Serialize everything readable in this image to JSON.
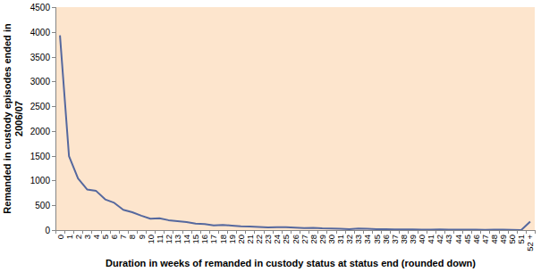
{
  "chart_data": {
    "type": "line",
    "xlabel": "Duration in weeks of remanded in custody status at status end (rounded down)",
    "ylabel": "Remanded in custody episodes ended in 2006/07",
    "categories": [
      "0",
      "1",
      "2",
      "3",
      "4",
      "5",
      "6",
      "7",
      "8",
      "9",
      "10",
      "11",
      "12",
      "13",
      "14",
      "15",
      "16",
      "17",
      "18",
      "19",
      "20",
      "21",
      "22",
      "23",
      "24",
      "25",
      "26",
      "27",
      "28",
      "29",
      "30",
      "31",
      "32",
      "33",
      "34",
      "35",
      "36",
      "37",
      "38",
      "39",
      "40",
      "41",
      "42",
      "43",
      "44",
      "45",
      "46",
      "47",
      "48",
      "49",
      "50",
      "51",
      "52 +"
    ],
    "values": [
      3930,
      1490,
      1040,
      820,
      790,
      620,
      550,
      410,
      360,
      290,
      230,
      240,
      200,
      180,
      160,
      130,
      120,
      95,
      105,
      90,
      75,
      70,
      65,
      55,
      60,
      60,
      50,
      40,
      45,
      35,
      30,
      25,
      20,
      30,
      25,
      20,
      18,
      15,
      12,
      12,
      10,
      10,
      12,
      8,
      10,
      8,
      8,
      6,
      10,
      8,
      5,
      0,
      170
    ],
    "color": "#55689e",
    "ylim": [
      0,
      4500
    ],
    "yticks": [
      0,
      500,
      1000,
      1500,
      2000,
      2500,
      3000,
      3500,
      4000,
      4500
    ],
    "grid": false
  }
}
